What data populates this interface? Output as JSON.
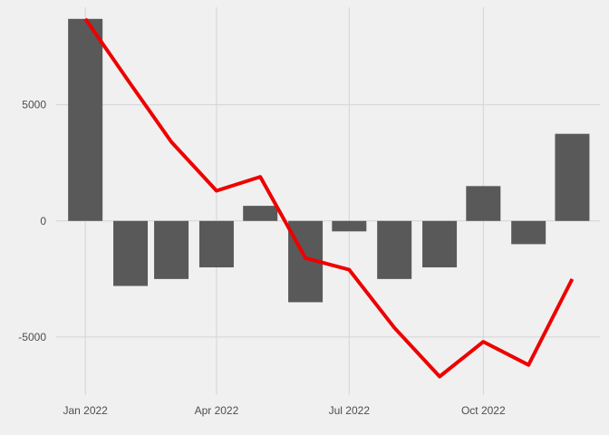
{
  "chart_data": {
    "type": "bar",
    "title": "",
    "xlabel": "",
    "ylabel": "",
    "x": [
      "2022-01-01",
      "2022-02-01",
      "2022-03-01",
      "2022-04-01",
      "2022-05-01",
      "2022-06-01",
      "2022-07-01",
      "2022-08-01",
      "2022-09-01",
      "2022-10-01",
      "2022-11-01",
      "2022-12-01"
    ],
    "series": [
      {
        "type": "bar",
        "color": "#595959",
        "values": [
          8700,
          -2800,
          -2500,
          -2000,
          650,
          -3500,
          -450,
          -2500,
          -2000,
          1500,
          -1000,
          3750
        ]
      },
      {
        "type": "line",
        "color": "#ee0000",
        "values": [
          8700,
          5900,
          3400,
          1300,
          1900,
          -1600,
          -2100,
          -4600,
          -6700,
          -5200,
          -6200,
          -2500
        ]
      }
    ],
    "x_ticks": [
      {
        "date": "2022-01-01",
        "label": "Jan 2022"
      },
      {
        "date": "2022-04-01",
        "label": "Apr 2022"
      },
      {
        "date": "2022-07-01",
        "label": "Jul 2022"
      },
      {
        "date": "2022-10-01",
        "label": "Oct 2022"
      }
    ],
    "y_ticks": [
      {
        "value": 5000,
        "label": "5000"
      },
      {
        "value": 0,
        "label": "0"
      },
      {
        "value": -5000,
        "label": "-5000"
      }
    ],
    "ylim": [
      -7500,
      9200
    ],
    "xlim": [
      "2021-12-12",
      "2022-12-20"
    ],
    "grid": true,
    "legend": "none"
  }
}
